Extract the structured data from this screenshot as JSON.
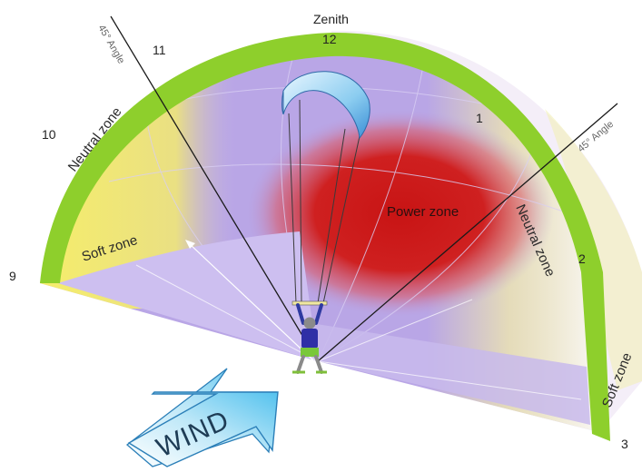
{
  "labels": {
    "zenith": "Zenith",
    "clock": {
      "c12": "12",
      "c11": "11",
      "c10": "10",
      "c9": "9",
      "c1": "1",
      "c2": "2",
      "c3": "3"
    },
    "angle_left": "45° Angle",
    "angle_right": "45° Angle",
    "neutral_left": "Neutral zone",
    "neutral_right": "Neutral zone",
    "soft_left": "Soft zone",
    "soft_right": "Soft zone",
    "power": "Power zone",
    "wind": "WIND"
  },
  "colors": {
    "rim": "#8ecf2c",
    "power": "#c81414",
    "dome": "#b7a3e6",
    "floor": "#c4b5ea",
    "soft": "#f6ee6a",
    "wind_arrow": "#7fd2f0"
  },
  "icons": {
    "kite": "kite-icon",
    "kiter": "kiter-figure",
    "wind": "wind-arrow-icon"
  }
}
